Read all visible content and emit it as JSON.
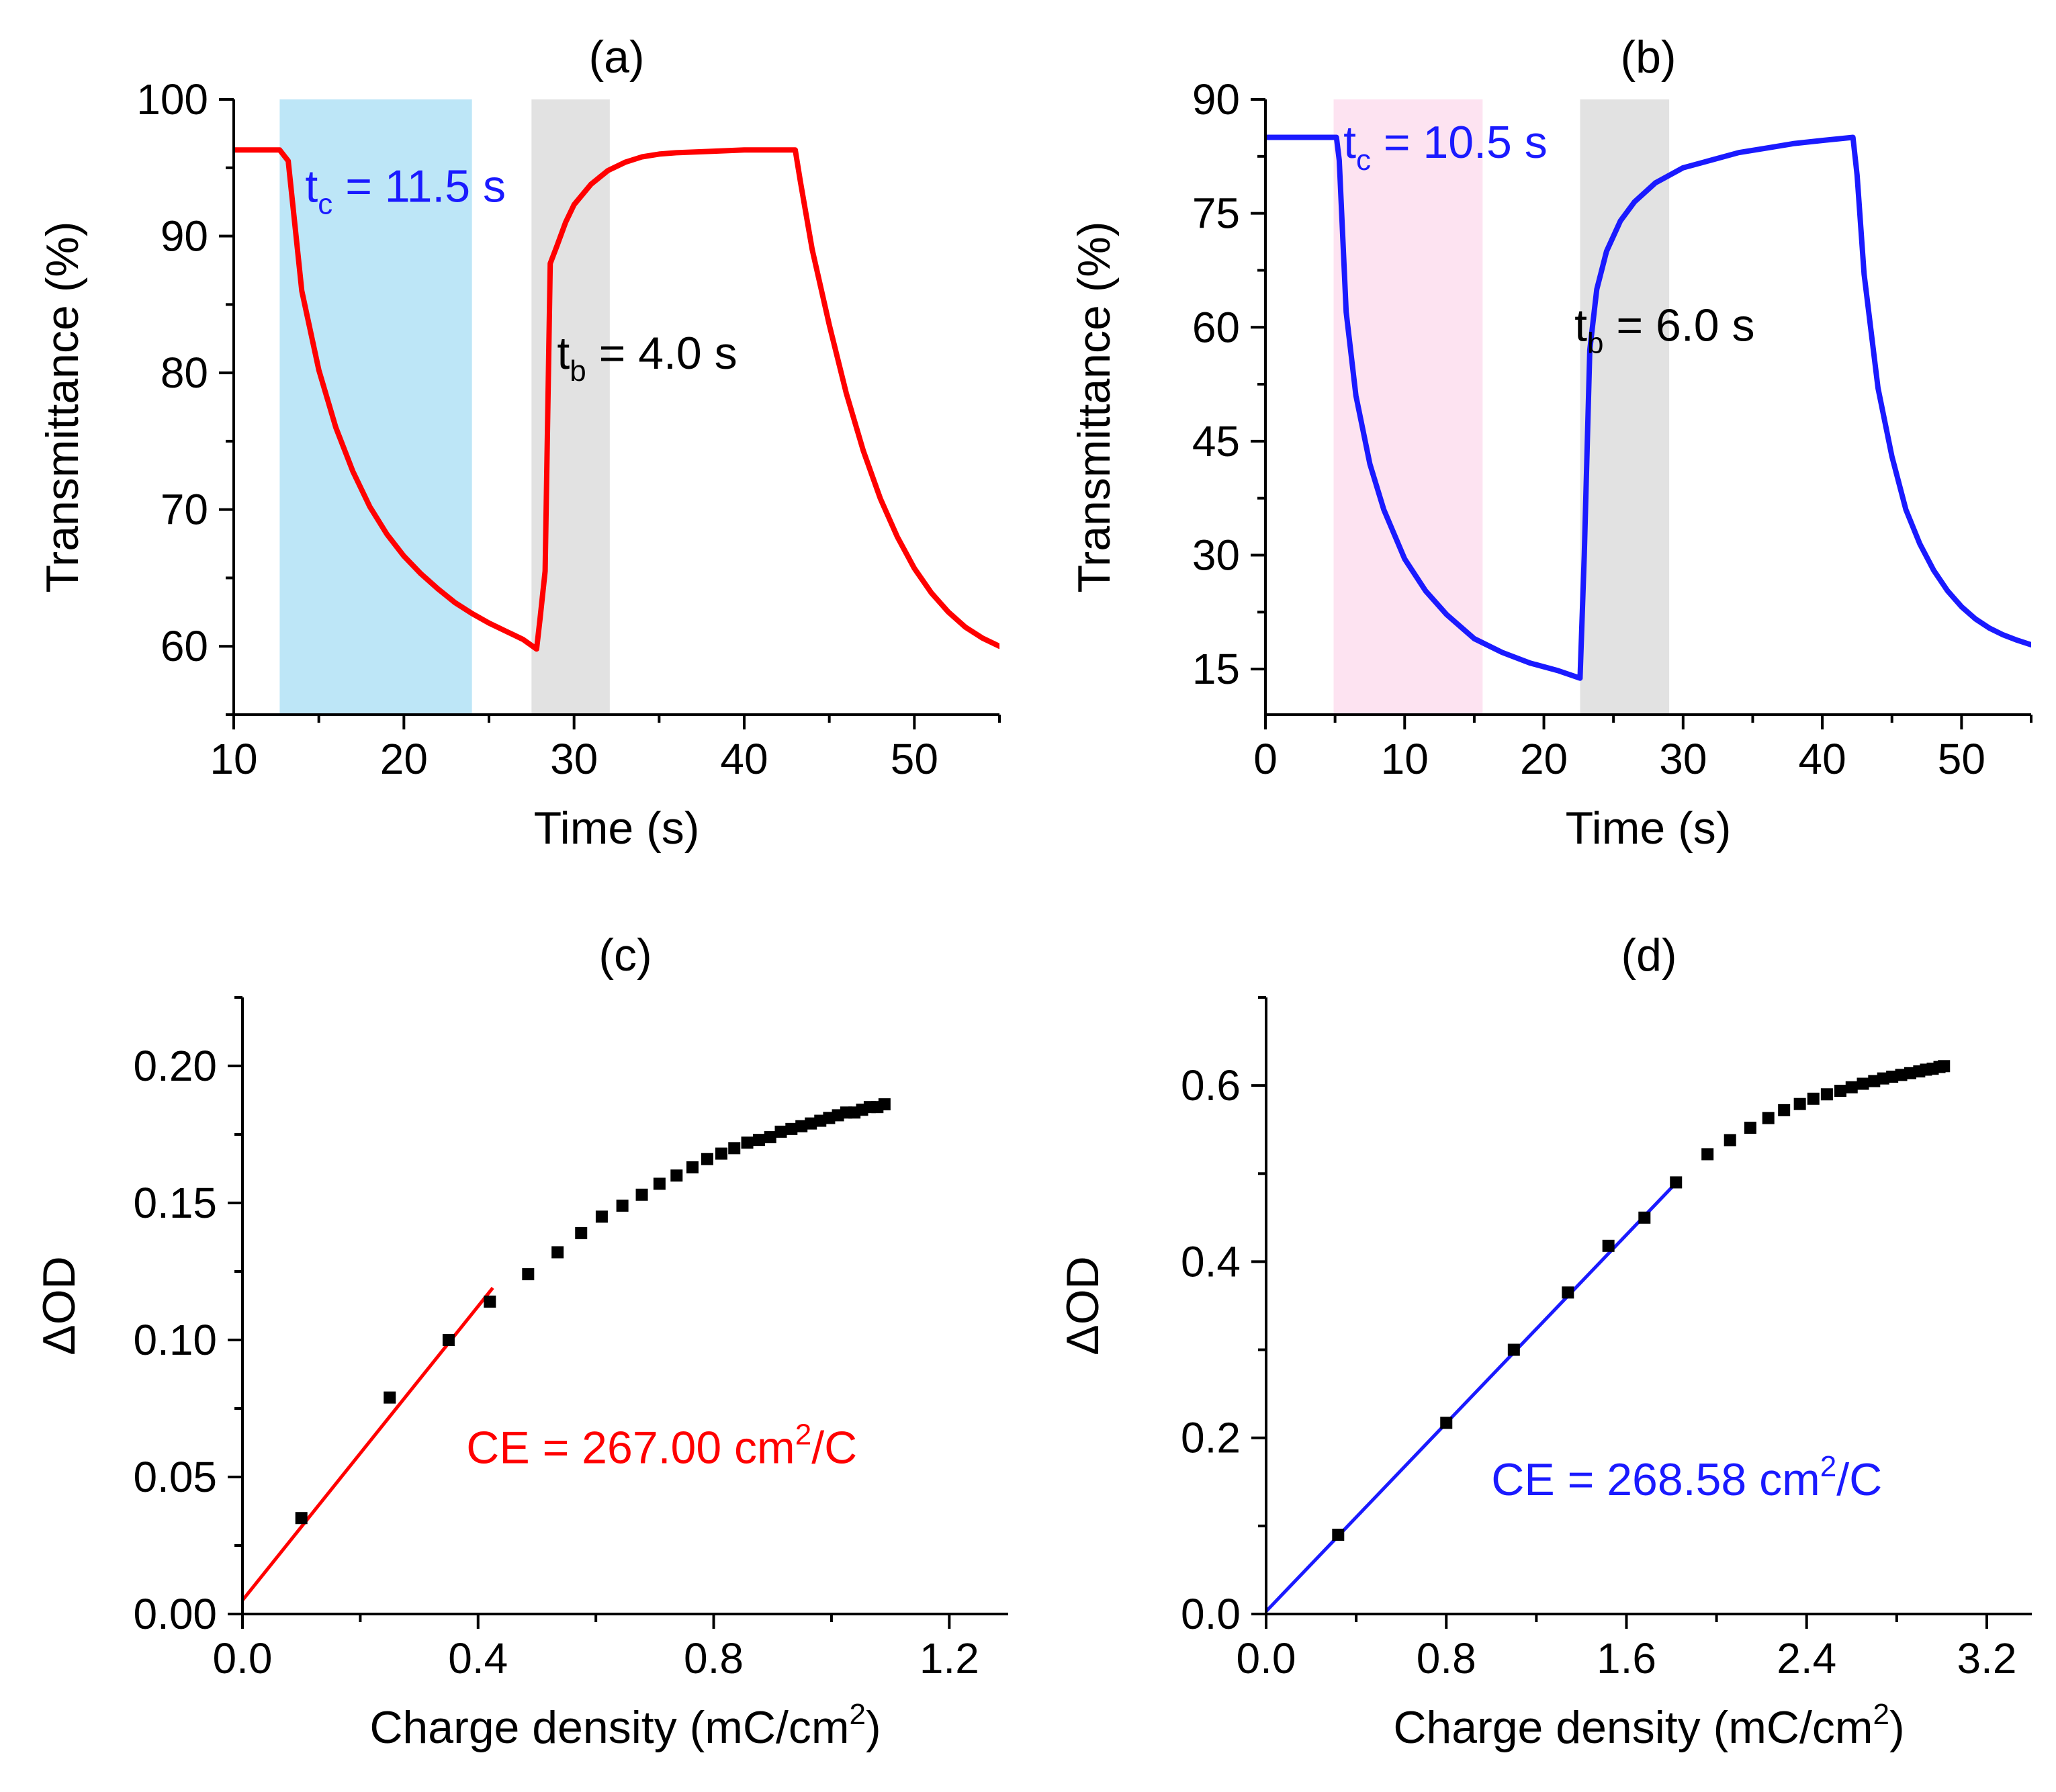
{
  "chart_data": [
    {
      "panel_label": "(a)",
      "type": "line",
      "xlabel": "Time (s)",
      "ylabel": "Transmittance (%)",
      "xlim": [
        10,
        55
      ],
      "ylim": [
        55,
        100
      ],
      "xticks": [
        10,
        20,
        30,
        40,
        50
      ],
      "yticks": [
        60,
        70,
        80,
        90,
        100
      ],
      "shaded_regions": [
        {
          "x": [
            12.7,
            24.0
          ],
          "color": "#bde6f7"
        },
        {
          "x": [
            27.5,
            32.1
          ],
          "color": "#e2e2e2"
        }
      ],
      "series": [
        {
          "color": "#ff0000",
          "x": [
            10,
            12.2,
            12.7,
            13.2,
            14,
            15,
            16,
            17,
            18,
            19,
            20,
            21,
            22,
            23,
            24,
            25,
            26,
            27,
            27.8,
            28.0,
            28.3,
            28.6,
            29.0,
            29.5,
            30,
            31,
            32,
            33,
            34,
            35,
            36,
            38,
            40,
            43.0,
            43.3,
            44,
            45,
            46,
            47,
            48,
            49,
            50,
            51,
            52,
            53,
            54,
            55
          ],
          "y": [
            96.3,
            96.3,
            96.3,
            95.5,
            86.0,
            80.2,
            76.0,
            72.8,
            70.2,
            68.2,
            66.6,
            65.3,
            64.2,
            63.2,
            62.4,
            61.7,
            61.1,
            60.5,
            59.8,
            62.0,
            65.5,
            88.0,
            89.3,
            91.0,
            92.3,
            93.8,
            94.8,
            95.4,
            95.8,
            96.0,
            96.1,
            96.2,
            96.3,
            96.3,
            94.0,
            89.0,
            83.5,
            78.5,
            74.3,
            70.8,
            68.0,
            65.7,
            63.9,
            62.5,
            61.4,
            60.6,
            60.0
          ]
        }
      ],
      "annotations": [
        {
          "base": "t",
          "sub": "c",
          "rest": " = 11.5 s",
          "color": "#1a1aff",
          "x": 14.2,
          "y": 92.5
        },
        {
          "base": "t",
          "sub": "b",
          "rest": " = 4.0 s",
          "color": "#000000",
          "x": 29.0,
          "y": 80.3
        }
      ]
    },
    {
      "panel_label": "(b)",
      "type": "line",
      "xlabel": "Time (s)",
      "ylabel": "Transmittance (%)",
      "xlim": [
        0,
        55
      ],
      "ylim": [
        9,
        90
      ],
      "xticks": [
        0,
        10,
        20,
        30,
        40,
        50
      ],
      "yticks": [
        15,
        30,
        45,
        60,
        75,
        90
      ],
      "shaded_regions": [
        {
          "x": [
            4.9,
            15.6
          ],
          "color": "#fde3f1"
        },
        {
          "x": [
            22.6,
            29.0
          ],
          "color": "#e2e2e2"
        }
      ],
      "series": [
        {
          "color": "#1a1aff",
          "x": [
            0,
            4.0,
            5.1,
            5.3,
            5.8,
            6.5,
            7.5,
            8.5,
            10,
            11.5,
            13,
            15,
            17,
            19,
            21,
            22.6,
            22.9,
            23.3,
            23.8,
            24.5,
            25.5,
            26.5,
            28,
            30,
            32,
            34,
            36,
            38,
            40,
            42.2,
            42.5,
            43,
            44,
            45,
            46,
            47,
            48,
            49,
            50,
            51,
            52,
            53,
            54,
            55
          ],
          "y": [
            85,
            85,
            85,
            82,
            62,
            51,
            42,
            36,
            29.5,
            25.3,
            22.2,
            19.0,
            17.2,
            15.8,
            14.8,
            13.8,
            30,
            57,
            65,
            70,
            74,
            76.5,
            79,
            81,
            82,
            83,
            83.6,
            84.2,
            84.6,
            85,
            80,
            67,
            52,
            43,
            36,
            31.5,
            28,
            25.3,
            23.2,
            21.6,
            20.4,
            19.5,
            18.8,
            18.2
          ]
        }
      ],
      "annotations": [
        {
          "base": "t",
          "sub": "c",
          "rest": " = 10.5 s",
          "color": "#1a1aff",
          "x": 5.6,
          "y": 82.3
        },
        {
          "base": "t",
          "sub": "b",
          "rest": " = 6.0 s",
          "color": "#000000",
          "x": 22.2,
          "y": 58.2
        }
      ]
    },
    {
      "panel_label": "(c)",
      "type": "scatter",
      "xlabel": {
        "text": "Charge density (mC/cm",
        "sup": "2",
        "end": ")"
      },
      "ylabel": "ΔOD",
      "xlim": [
        0,
        1.3
      ],
      "ylim": [
        0,
        0.225
      ],
      "xticks": [
        0.0,
        0.4,
        0.8,
        1.2
      ],
      "ytick_labels": [
        "0.00",
        "0.05",
        "0.10",
        "0.15",
        "0.20"
      ],
      "yticks": [
        0.0,
        0.05,
        0.1,
        0.15,
        0.2
      ],
      "xtick_labels": [
        "0.0",
        "0.4",
        "0.8",
        "1.2"
      ],
      "points": {
        "color": "#000000",
        "x": [
          0.1,
          0.25,
          0.35,
          0.42,
          0.485,
          0.535,
          0.575,
          0.61,
          0.645,
          0.678,
          0.708,
          0.737,
          0.764,
          0.789,
          0.813,
          0.835,
          0.857,
          0.877,
          0.896,
          0.914,
          0.932,
          0.949,
          0.965,
          0.981,
          0.996,
          1.011,
          1.025,
          1.039,
          1.052,
          1.065,
          1.078,
          1.09
        ],
        "y": [
          0.035,
          0.079,
          0.1,
          0.114,
          0.124,
          0.132,
          0.139,
          0.145,
          0.149,
          0.153,
          0.157,
          0.16,
          0.163,
          0.166,
          0.168,
          0.17,
          0.172,
          0.173,
          0.174,
          0.176,
          0.177,
          0.178,
          0.179,
          0.18,
          0.181,
          0.182,
          0.183,
          0.183,
          0.184,
          0.185,
          0.185,
          0.186
        ]
      },
      "fit_line": {
        "color": "#ff0000",
        "x": [
          0,
          0.425
        ],
        "y": [
          0.005,
          0.119
        ]
      },
      "annotation": {
        "text": "CE = 267.00 cm",
        "sup": "2",
        "end": "/C",
        "color": "#ff0000",
        "x": 0.38,
        "y": 0.055
      }
    },
    {
      "panel_label": "(d)",
      "type": "scatter",
      "xlabel": {
        "text": "Charge density (mC/cm",
        "sup": "2",
        "end": ")"
      },
      "ylabel": "ΔOD",
      "xlim": [
        0,
        3.4
      ],
      "ylim": [
        0,
        0.7
      ],
      "xticks": [
        0.0,
        0.8,
        1.6,
        2.4,
        3.2
      ],
      "xtick_labels": [
        "0.0",
        "0.8",
        "1.6",
        "2.4",
        "3.2"
      ],
      "yticks": [
        0.0,
        0.2,
        0.4,
        0.6
      ],
      "ytick_labels": [
        "0.0",
        "0.2",
        "0.4",
        "0.6"
      ],
      "points": {
        "color": "#000000",
        "x": [
          0.32,
          0.8,
          1.1,
          1.34,
          1.52,
          1.68,
          1.82,
          1.96,
          2.06,
          2.15,
          2.23,
          2.3,
          2.37,
          2.43,
          2.49,
          2.55,
          2.6,
          2.65,
          2.7,
          2.74,
          2.78,
          2.82,
          2.86,
          2.9,
          2.93,
          2.96,
          2.99,
          3.01
        ],
        "y": [
          0.09,
          0.217,
          0.3,
          0.365,
          0.418,
          0.45,
          0.49,
          0.522,
          0.538,
          0.552,
          0.563,
          0.572,
          0.579,
          0.585,
          0.59,
          0.594,
          0.598,
          0.602,
          0.605,
          0.608,
          0.61,
          0.612,
          0.614,
          0.616,
          0.618,
          0.619,
          0.621,
          0.622
        ]
      },
      "fit_line": {
        "color": "#1a1aff",
        "x": [
          0,
          1.83
        ],
        "y": [
          0.003,
          0.492
        ]
      },
      "annotation": {
        "text": "CE = 268.58 cm",
        "sup": "2",
        "end": "/C",
        "color": "#1a1aff",
        "x": 1.0,
        "y": 0.135
      }
    }
  ]
}
